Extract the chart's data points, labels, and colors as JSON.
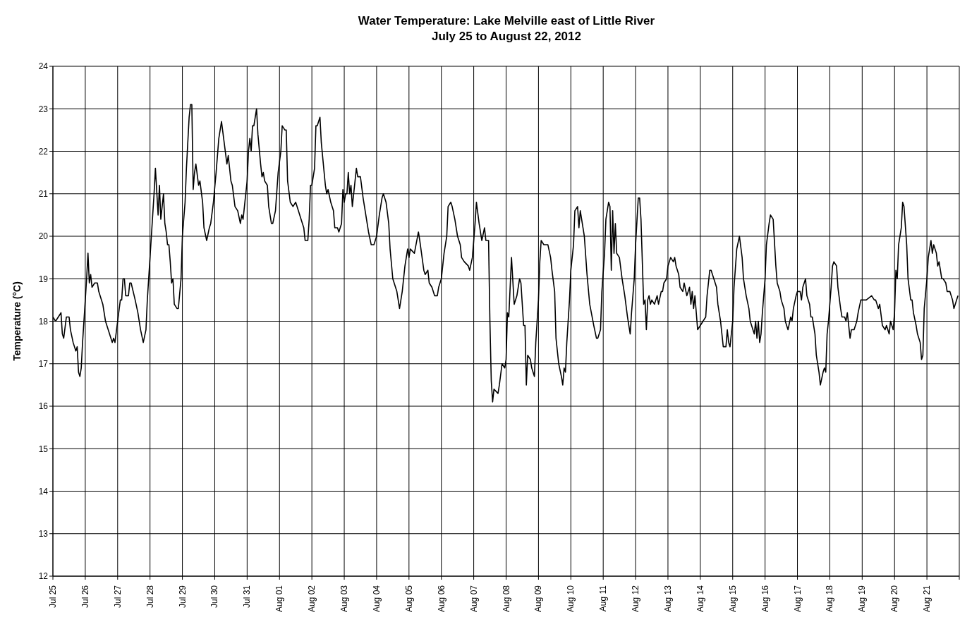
{
  "chart_data": {
    "type": "line",
    "title": "Water Temperature: Lake Melville east of Little River",
    "subtitle": "July 25 to August 22, 2012",
    "ylabel": "Temperature (°C)",
    "xlim": [
      "2012-07-25",
      "2012-08-22"
    ],
    "xticks": [
      {
        "value": "2012-07-25",
        "label": "Jul 25"
      },
      {
        "value": "2012-07-26",
        "label": "Jul 26"
      },
      {
        "value": "2012-07-27",
        "label": "Jul 27"
      },
      {
        "value": "2012-07-28",
        "label": "Jul 28"
      },
      {
        "value": "2012-07-29",
        "label": "Jul 29"
      },
      {
        "value": "2012-07-30",
        "label": "Jul 30"
      },
      {
        "value": "2012-07-31",
        "label": "Jul 31"
      },
      {
        "value": "2012-08-01",
        "label": "Aug 01"
      },
      {
        "value": "2012-08-02",
        "label": "Aug 02"
      },
      {
        "value": "2012-08-03",
        "label": "Aug 03"
      },
      {
        "value": "2012-08-04",
        "label": "Aug 04"
      },
      {
        "value": "2012-08-05",
        "label": "Aug 05"
      },
      {
        "value": "2012-08-06",
        "label": "Aug 06"
      },
      {
        "value": "2012-08-07",
        "label": "Aug 07"
      },
      {
        "value": "2012-08-08",
        "label": "Aug 08"
      },
      {
        "value": "2012-08-09",
        "label": "Aug 09"
      },
      {
        "value": "2012-08-10",
        "label": "Aug 10"
      },
      {
        "value": "2012-08-11",
        "label": "Aug 11"
      },
      {
        "value": "2012-08-12",
        "label": "Aug 12"
      },
      {
        "value": "2012-08-13",
        "label": "Aug 13"
      },
      {
        "value": "2012-08-14",
        "label": "Aug 14"
      },
      {
        "value": "2012-08-15",
        "label": "Aug 15"
      },
      {
        "value": "2012-08-16",
        "label": "Aug 16"
      },
      {
        "value": "2012-08-17",
        "label": "Aug 17"
      },
      {
        "value": "2012-08-18",
        "label": "Aug 18"
      },
      {
        "value": "2012-08-19",
        "label": "Aug 19"
      },
      {
        "value": "2012-08-20",
        "label": "Aug 20"
      },
      {
        "value": "2012-08-21",
        "label": "Aug 21"
      },
      {
        "value": "2012-08-22",
        "label": null
      }
    ],
    "ylim": [
      12,
      24
    ],
    "yticks": [
      12,
      13,
      14,
      15,
      16,
      17,
      18,
      19,
      20,
      21,
      22,
      23,
      24
    ],
    "grid": true,
    "line_style": "solid",
    "series": [
      {
        "color": "#000000",
        "x": [
          "2012-07-25T00:00",
          "2012-07-25T02:00",
          "2012-07-25T06:00",
          "2012-07-25T07:00",
          "2012-07-25T08:00",
          "2012-07-25T10:00",
          "2012-07-25T12:00",
          "2012-07-25T13:00",
          "2012-07-25T15:00",
          "2012-07-25T17:00",
          "2012-07-25T18:00",
          "2012-07-25T19:00",
          "2012-07-25T20:00",
          "2012-07-25T21:00",
          "2012-07-25T22:00",
          "2012-07-25T23:00",
          "2012-07-26T01:00",
          "2012-07-26T02:00",
          "2012-07-26T03:00",
          "2012-07-26T04:00",
          "2012-07-26T05:00",
          "2012-07-26T07:00",
          "2012-07-26T09:00",
          "2012-07-26T10:00",
          "2012-07-26T13:00",
          "2012-07-26T15:00",
          "2012-07-26T18:00",
          "2012-07-26T20:00",
          "2012-07-26T21:00",
          "2012-07-26T22:00",
          "2012-07-27T00:00",
          "2012-07-27T02:00",
          "2012-07-27T03:00",
          "2012-07-27T04:00",
          "2012-07-27T05:00",
          "2012-07-27T06:00",
          "2012-07-27T08:00",
          "2012-07-27T09:00",
          "2012-07-27T10:00",
          "2012-07-27T13:00",
          "2012-07-27T15:00",
          "2012-07-27T17:00",
          "2012-07-27T19:00",
          "2012-07-27T21:00",
          "2012-07-27T22:00",
          "2012-07-28T01:00",
          "2012-07-28T03:00",
          "2012-07-28T04:00",
          "2012-07-28T06:00",
          "2012-07-28T07:00",
          "2012-07-28T08:00",
          "2012-07-28T10:00",
          "2012-07-28T11:00",
          "2012-07-28T12:00",
          "2012-07-28T13:00",
          "2012-07-28T14:00",
          "2012-07-28T15:00",
          "2012-07-28T16:00",
          "2012-07-28T17:00",
          "2012-07-28T18:00",
          "2012-07-28T20:00",
          "2012-07-28T21:00",
          "2012-07-28T23:00",
          "2012-07-29T00:00",
          "2012-07-29T02:00",
          "2012-07-29T03:00",
          "2012-07-29T05:00",
          "2012-07-29T06:00",
          "2012-07-29T07:00",
          "2012-07-29T08:00",
          "2012-07-29T09:00",
          "2012-07-29T10:00",
          "2012-07-29T12:00",
          "2012-07-29T13:00",
          "2012-07-29T15:00",
          "2012-07-29T16:00",
          "2012-07-29T18:00",
          "2012-07-29T20:00",
          "2012-07-29T21:00",
          "2012-07-29T23:00",
          "2012-07-30T01:00",
          "2012-07-30T03:00",
          "2012-07-30T05:00",
          "2012-07-30T07:00",
          "2012-07-30T09:00",
          "2012-07-30T10:00",
          "2012-07-30T12:00",
          "2012-07-30T13:00",
          "2012-07-30T15:00",
          "2012-07-30T17:00",
          "2012-07-30T19:00",
          "2012-07-30T20:00",
          "2012-07-30T21:00",
          "2012-07-30T22:00",
          "2012-07-31T00:00",
          "2012-07-31T01:00",
          "2012-07-31T02:00",
          "2012-07-31T03:00",
          "2012-07-31T04:00",
          "2012-07-31T05:00",
          "2012-07-31T07:00",
          "2012-07-31T08:00",
          "2012-07-31T10:00",
          "2012-07-31T11:00",
          "2012-07-31T12:00",
          "2012-07-31T13:00",
          "2012-07-31T15:00",
          "2012-07-31T16:00",
          "2012-07-31T18:00",
          "2012-07-31T19:00",
          "2012-07-31T21:00",
          "2012-07-31T23:00",
          "2012-08-01T01:00",
          "2012-08-01T02:00",
          "2012-08-01T04:00",
          "2012-08-01T05:00",
          "2012-08-01T06:00",
          "2012-08-01T08:00",
          "2012-08-01T10:00",
          "2012-08-01T12:00",
          "2012-08-01T14:00",
          "2012-08-01T16:00",
          "2012-08-01T18:00",
          "2012-08-01T19:00",
          "2012-08-01T21:00",
          "2012-08-01T22:00",
          "2012-08-01T23:00",
          "2012-08-02T00:00",
          "2012-08-02T02:00",
          "2012-08-02T03:00",
          "2012-08-02T04:00",
          "2012-08-02T06:00",
          "2012-08-02T07:00",
          "2012-08-02T10:00",
          "2012-08-02T11:00",
          "2012-08-02T12:00",
          "2012-08-02T14:00",
          "2012-08-02T16:00",
          "2012-08-02T17:00",
          "2012-08-02T19:00",
          "2012-08-02T20:00",
          "2012-08-02T22:00",
          "2012-08-02T23:00",
          "2012-08-03T00:00",
          "2012-08-03T01:00",
          "2012-08-03T02:00",
          "2012-08-03T03:00",
          "2012-08-03T04:00",
          "2012-08-03T05:00",
          "2012-08-03T06:00",
          "2012-08-03T09:00",
          "2012-08-03T10:00",
          "2012-08-03T12:00",
          "2012-08-03T14:00",
          "2012-08-03T15:00",
          "2012-08-03T17:00",
          "2012-08-03T18:00",
          "2012-08-03T20:00",
          "2012-08-03T22:00",
          "2012-08-04T00:00",
          "2012-08-04T02:00",
          "2012-08-04T04:00",
          "2012-08-04T05:00",
          "2012-08-04T07:00",
          "2012-08-04T09:00",
          "2012-08-04T10:00",
          "2012-08-04T12:00",
          "2012-08-04T15:00",
          "2012-08-04T17:00",
          "2012-08-04T19:00",
          "2012-08-04T21:00",
          "2012-08-04T23:00",
          "2012-08-05T00:00",
          "2012-08-05T01:00",
          "2012-08-05T04:00",
          "2012-08-05T07:00",
          "2012-08-05T08:00",
          "2012-08-05T11:00",
          "2012-08-05T12:00",
          "2012-08-05T14:00",
          "2012-08-05T15:00",
          "2012-08-05T17:00",
          "2012-08-05T19:00",
          "2012-08-05T21:00",
          "2012-08-05T22:00",
          "2012-08-06T00:00",
          "2012-08-06T02:00",
          "2012-08-06T04:00",
          "2012-08-06T05:00",
          "2012-08-06T07:00",
          "2012-08-06T08:00",
          "2012-08-06T10:00",
          "2012-08-06T12:00",
          "2012-08-06T14:00",
          "2012-08-06T15:00",
          "2012-08-06T17:00",
          "2012-08-06T20:00",
          "2012-08-06T21:00",
          "2012-08-06T23:00",
          "2012-08-07T01:00",
          "2012-08-07T02:00",
          "2012-08-07T04:00",
          "2012-08-07T06:00",
          "2012-08-07T08:00",
          "2012-08-07T09:00",
          "2012-08-07T11:00",
          "2012-08-07T12:00",
          "2012-08-07T13:00",
          "2012-08-07T14:00",
          "2012-08-07T15:00",
          "2012-08-07T18:00",
          "2012-08-07T19:00",
          "2012-08-07T21:00",
          "2012-08-07T23:00",
          "2012-08-08T00:00",
          "2012-08-08T01:00",
          "2012-08-08T02:00",
          "2012-08-08T04:00",
          "2012-08-08T06:00",
          "2012-08-08T08:00",
          "2012-08-08T10:00",
          "2012-08-08T11:00",
          "2012-08-08T13:00",
          "2012-08-08T14:00",
          "2012-08-08T15:00",
          "2012-08-08T16:00",
          "2012-08-08T18:00",
          "2012-08-08T19:00",
          "2012-08-08T21:00",
          "2012-08-08T22:00",
          "2012-08-09T00:00",
          "2012-08-09T01:00",
          "2012-08-09T02:00",
          "2012-08-09T04:00",
          "2012-08-09T07:00",
          "2012-08-09T09:00",
          "2012-08-09T10:00",
          "2012-08-09T12:00",
          "2012-08-09T13:00",
          "2012-08-09T15:00",
          "2012-08-09T17:00",
          "2012-08-09T18:00",
          "2012-08-09T19:00",
          "2012-08-09T20:00",
          "2012-08-09T21:00",
          "2012-08-09T23:00",
          "2012-08-10T00:00",
          "2012-08-10T02:00",
          "2012-08-10T03:00",
          "2012-08-10T05:00",
          "2012-08-10T06:00",
          "2012-08-10T07:00",
          "2012-08-10T09:00",
          "2012-08-10T10:00",
          "2012-08-10T12:00",
          "2012-08-10T14:00",
          "2012-08-10T17:00",
          "2012-08-10T19:00",
          "2012-08-10T20:00",
          "2012-08-10T22:00",
          "2012-08-10T23:00",
          "2012-08-11T01:00",
          "2012-08-11T02:00",
          "2012-08-11T04:00",
          "2012-08-11T05:00",
          "2012-08-11T06:00",
          "2012-08-11T07:00",
          "2012-08-11T08:00",
          "2012-08-11T09:00",
          "2012-08-11T10:00",
          "2012-08-11T12:00",
          "2012-08-11T14:00",
          "2012-08-11T16:00",
          "2012-08-11T18:00",
          "2012-08-11T20:00",
          "2012-08-11T21:00",
          "2012-08-11T23:00",
          "2012-08-12T00:00",
          "2012-08-12T02:00",
          "2012-08-12T03:00",
          "2012-08-12T04:00",
          "2012-08-12T06:00",
          "2012-08-12T07:00",
          "2012-08-12T08:00",
          "2012-08-12T09:00",
          "2012-08-12T10:00",
          "2012-08-12T11:00",
          "2012-08-12T12:00",
          "2012-08-12T14:00",
          "2012-08-12T16:00",
          "2012-08-12T17:00",
          "2012-08-12T19:00",
          "2012-08-12T20:00",
          "2012-08-12T21:00",
          "2012-08-12T23:00",
          "2012-08-13T00:00",
          "2012-08-13T02:00",
          "2012-08-13T04:00",
          "2012-08-13T05:00",
          "2012-08-13T06:00",
          "2012-08-13T08:00",
          "2012-08-13T09:00",
          "2012-08-13T11:00",
          "2012-08-13T12:00",
          "2012-08-13T14:00",
          "2012-08-13T16:00",
          "2012-08-13T17:00",
          "2012-08-13T18:00",
          "2012-08-13T19:00",
          "2012-08-13T20:00",
          "2012-08-13T21:00",
          "2012-08-13T22:00",
          "2012-08-14T04:00",
          "2012-08-14T05:00",
          "2012-08-14T07:00",
          "2012-08-14T08:00",
          "2012-08-14T10:00",
          "2012-08-14T12:00",
          "2012-08-14T13:00",
          "2012-08-14T15:00",
          "2012-08-14T17:00",
          "2012-08-14T19:00",
          "2012-08-14T20:00",
          "2012-08-14T21:00",
          "2012-08-14T22:00",
          "2012-08-15T00:00",
          "2012-08-15T01:00",
          "2012-08-15T03:00",
          "2012-08-15T05:00",
          "2012-08-15T07:00",
          "2012-08-15T08:00",
          "2012-08-15T10:00",
          "2012-08-15T12:00",
          "2012-08-15T13:00",
          "2012-08-15T15:00",
          "2012-08-15T16:00",
          "2012-08-15T17:00",
          "2012-08-15T18:00",
          "2012-08-15T19:00",
          "2012-08-15T20:00",
          "2012-08-15T21:00",
          "2012-08-15T22:00",
          "2012-08-16T00:00",
          "2012-08-16T01:00",
          "2012-08-16T03:00",
          "2012-08-16T04:00",
          "2012-08-16T06:00",
          "2012-08-16T08:00",
          "2012-08-16T09:00",
          "2012-08-16T11:00",
          "2012-08-16T12:00",
          "2012-08-16T14:00",
          "2012-08-16T15:00",
          "2012-08-16T17:00",
          "2012-08-16T19:00",
          "2012-08-16T20:00",
          "2012-08-16T21:00",
          "2012-08-16T23:00",
          "2012-08-17T00:00",
          "2012-08-17T02:00",
          "2012-08-17T03:00",
          "2012-08-17T04:00",
          "2012-08-17T06:00",
          "2012-08-17T07:00",
          "2012-08-17T09:00",
          "2012-08-17T10:00",
          "2012-08-17T11:00",
          "2012-08-17T13:00",
          "2012-08-17T14:00",
          "2012-08-17T16:00",
          "2012-08-17T17:00",
          "2012-08-17T19:00",
          "2012-08-17T20:00",
          "2012-08-17T21:00",
          "2012-08-17T22:00",
          "2012-08-17T23:00",
          "2012-08-18T01:00",
          "2012-08-18T02:00",
          "2012-08-18T03:00",
          "2012-08-18T05:00",
          "2012-08-18T06:00",
          "2012-08-18T08:00",
          "2012-08-18T09:00",
          "2012-08-18T11:00",
          "2012-08-18T12:00",
          "2012-08-18T13:00",
          "2012-08-18T15:00",
          "2012-08-18T16:00",
          "2012-08-18T18:00",
          "2012-08-18T20:00",
          "2012-08-18T21:00",
          "2012-08-18T23:00",
          "2012-08-19T01:00",
          "2012-08-19T03:00",
          "2012-08-19T07:00",
          "2012-08-19T09:00",
          "2012-08-19T10:00",
          "2012-08-19T12:00",
          "2012-08-19T13:00",
          "2012-08-19T15:00",
          "2012-08-19T17:00",
          "2012-08-19T18:00",
          "2012-08-19T20:00",
          "2012-08-19T21:00",
          "2012-08-19T23:00",
          "2012-08-20T00:00",
          "2012-08-20T01:00",
          "2012-08-20T02:00",
          "2012-08-20T03:00",
          "2012-08-20T05:00",
          "2012-08-20T06:00",
          "2012-08-20T07:00",
          "2012-08-20T09:00",
          "2012-08-20T10:00",
          "2012-08-20T12:00",
          "2012-08-20T13:00",
          "2012-08-20T14:00",
          "2012-08-20T16:00",
          "2012-08-20T17:00",
          "2012-08-20T19:00",
          "2012-08-20T20:00",
          "2012-08-20T21:00",
          "2012-08-20T22:00",
          "2012-08-21T00:00",
          "2012-08-21T01:00",
          "2012-08-21T03:00",
          "2012-08-21T04:00",
          "2012-08-21T05:00",
          "2012-08-21T07:00",
          "2012-08-21T08:00",
          "2012-08-21T09:00",
          "2012-08-21T11:00",
          "2012-08-21T12:00",
          "2012-08-21T14:00",
          "2012-08-21T15:00",
          "2012-08-21T17:00",
          "2012-08-21T19:00",
          "2012-08-21T20:00",
          "2012-08-21T21:00",
          "2012-08-21T23:00"
        ],
        "values": [
          18.1,
          18.0,
          18.2,
          17.7,
          17.6,
          18.1,
          18.1,
          17.8,
          17.5,
          17.3,
          17.4,
          16.8,
          16.7,
          16.9,
          17.5,
          18.0,
          19.0,
          19.6,
          18.9,
          19.1,
          18.8,
          18.9,
          18.9,
          18.7,
          18.4,
          18.0,
          17.7,
          17.5,
          17.6,
          17.5,
          18.0,
          18.5,
          18.5,
          19.0,
          19.0,
          18.6,
          18.6,
          18.9,
          18.9,
          18.5,
          18.2,
          17.8,
          17.5,
          17.8,
          18.5,
          20.0,
          21.0,
          21.6,
          20.5,
          21.2,
          20.4,
          21.0,
          20.3,
          20.1,
          19.8,
          19.8,
          19.4,
          18.9,
          19.0,
          18.4,
          18.3,
          18.3,
          19.0,
          20.0,
          20.8,
          21.6,
          22.8,
          23.1,
          23.1,
          21.1,
          21.5,
          21.7,
          21.2,
          21.3,
          20.8,
          20.2,
          19.9,
          20.2,
          20.3,
          20.8,
          21.5,
          22.3,
          22.7,
          22.2,
          21.7,
          21.9,
          21.3,
          21.2,
          20.7,
          20.6,
          20.3,
          20.5,
          20.4,
          20.7,
          21.3,
          22.0,
          22.3,
          22.0,
          22.6,
          22.6,
          23.0,
          22.4,
          21.7,
          21.4,
          21.5,
          21.3,
          21.2,
          20.7,
          20.3,
          20.3,
          20.6,
          21.5,
          22.0,
          22.6,
          22.5,
          22.5,
          21.3,
          20.8,
          20.7,
          20.8,
          20.6,
          20.4,
          20.2,
          19.9,
          19.9,
          20.4,
          21.2,
          21.2,
          21.6,
          22.6,
          22.6,
          22.8,
          22.2,
          21.2,
          21.0,
          21.1,
          20.8,
          20.6,
          20.2,
          20.2,
          20.1,
          20.3,
          21.1,
          20.8,
          21.0,
          21.0,
          21.5,
          21.0,
          21.2,
          20.7,
          21.6,
          21.4,
          21.4,
          20.9,
          20.7,
          20.3,
          20.1,
          19.8,
          19.8,
          20.0,
          20.5,
          20.9,
          21.0,
          20.8,
          20.3,
          19.7,
          19.0,
          18.7,
          18.3,
          18.7,
          19.3,
          19.7,
          19.5,
          19.7,
          19.6,
          20.1,
          19.9,
          19.2,
          19.1,
          19.2,
          18.9,
          18.8,
          18.6,
          18.6,
          18.8,
          19.0,
          19.6,
          20.0,
          20.7,
          20.8,
          20.7,
          20.4,
          20.0,
          19.8,
          19.5,
          19.4,
          19.3,
          19.2,
          19.5,
          20.3,
          20.8,
          20.3,
          19.9,
          20.2,
          19.9,
          19.9,
          18.0,
          16.6,
          16.1,
          16.4,
          16.3,
          16.5,
          17.0,
          16.9,
          17.1,
          18.2,
          18.1,
          19.5,
          18.4,
          18.6,
          19.0,
          18.9,
          17.9,
          17.9,
          16.5,
          17.2,
          17.1,
          16.9,
          16.7,
          17.5,
          18.5,
          19.4,
          19.9,
          19.8,
          19.8,
          19.5,
          19.2,
          18.7,
          17.6,
          17.0,
          16.7,
          16.5,
          16.9,
          16.8,
          17.5,
          18.5,
          19.2,
          19.8,
          20.6,
          20.7,
          20.2,
          20.6,
          20.2,
          20.0,
          19.1,
          18.4,
          17.9,
          17.6,
          17.6,
          17.8,
          18.7,
          19.6,
          20.4,
          20.8,
          20.7,
          19.2,
          20.6,
          19.6,
          20.3,
          19.6,
          19.5,
          19.0,
          18.6,
          18.1,
          17.7,
          18.2,
          19.0,
          19.8,
          20.9,
          20.9,
          20.4,
          18.4,
          18.5,
          17.8,
          18.5,
          18.6,
          18.4,
          18.5,
          18.4,
          18.6,
          18.4,
          18.7,
          18.7,
          18.9,
          19.0,
          19.3,
          19.5,
          19.4,
          19.5,
          19.3,
          19.1,
          18.8,
          18.7,
          18.9,
          18.6,
          18.8,
          18.4,
          18.7,
          18.3,
          18.6,
          18.2,
          17.8,
          18.1,
          18.6,
          19.2,
          19.2,
          19.0,
          18.8,
          18.4,
          18.0,
          17.4,
          17.4,
          17.8,
          17.5,
          17.4,
          18.0,
          18.8,
          19.7,
          20.0,
          19.5,
          19.0,
          18.6,
          18.3,
          18.0,
          17.8,
          17.7,
          18.0,
          17.6,
          18.0,
          17.5,
          17.7,
          18.2,
          19.0,
          19.8,
          20.3,
          20.5,
          20.4,
          19.3,
          18.9,
          18.7,
          18.5,
          18.3,
          18.0,
          17.8,
          18.1,
          18.0,
          18.3,
          18.6,
          18.7,
          18.7,
          18.5,
          18.8,
          19.0,
          18.6,
          18.4,
          18.1,
          18.1,
          17.7,
          17.2,
          16.8,
          16.5,
          16.8,
          16.9,
          16.8,
          17.7,
          18.0,
          18.8,
          19.3,
          19.4,
          19.3,
          18.8,
          18.3,
          18.1,
          18.1,
          18.0,
          18.2,
          17.6,
          17.8,
          17.8,
          18.0,
          18.2,
          18.5,
          18.5,
          18.5,
          18.6,
          18.5,
          18.5,
          18.3,
          18.4,
          17.9,
          17.8,
          17.9,
          17.7,
          18.0,
          17.8,
          18.2,
          19.2,
          19.0,
          19.8,
          20.2,
          20.8,
          20.7,
          19.8,
          19.0,
          18.5,
          18.5,
          18.2,
          17.9,
          17.7,
          17.5,
          17.1,
          17.2,
          18.3,
          19.0,
          19.5,
          19.9,
          19.6,
          19.8,
          19.6,
          19.3,
          19.4,
          19.0,
          19.0,
          18.9,
          18.7,
          18.7,
          18.5,
          18.3,
          18.4,
          18.6
        ]
      }
    ]
  }
}
